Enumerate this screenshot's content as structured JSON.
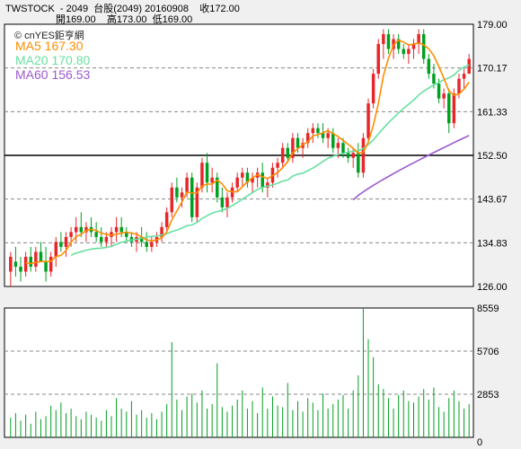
{
  "header": {
    "line1": "TWSTOCK  - 2049  台股(2049) 20160908    收172.00",
    "line2": "開169.00    高173.00  低169.00"
  },
  "watermark": "© cnYES鉅亨網",
  "legend": [
    {
      "key": "ma5",
      "text": "MA5 167.30",
      "color": "#ff8c00"
    },
    {
      "key": "ma20",
      "text": "MA20 170.80",
      "color": "#66e0a0"
    },
    {
      "key": "ma60",
      "text": "MA60 156.53",
      "color": "#9b59d0"
    }
  ],
  "colors": {
    "up": "#e8262a",
    "down": "#00a020",
    "volume_base": "#000000"
  },
  "chart_data": [
    {
      "type": "candlestick",
      "title": "TWSTOCK - 2049 台股(2049) 20160908",
      "ylim": [
        126.0,
        179.0
      ],
      "y_ticks": [
        "179.00",
        "170.17",
        "161.33",
        "152.50",
        "143.67",
        "134.83",
        "126.00"
      ],
      "reference_line": 152.5,
      "last_close": 172.0,
      "candles_ohlc": [
        [
          129,
          133,
          126,
          132
        ],
        [
          131,
          134,
          128,
          130
        ],
        [
          130,
          132,
          127,
          129
        ],
        [
          129,
          133,
          128,
          132
        ],
        [
          132,
          134,
          129,
          130
        ],
        [
          130,
          134,
          129,
          133
        ],
        [
          133,
          135,
          131,
          131
        ],
        [
          131,
          134,
          127,
          129
        ],
        [
          129,
          133,
          128,
          132
        ],
        [
          132,
          136,
          130,
          135
        ],
        [
          135,
          137,
          133,
          134
        ],
        [
          134,
          137,
          132,
          136
        ],
        [
          136,
          138,
          134,
          137
        ],
        [
          137,
          140,
          135,
          138
        ],
        [
          138,
          141,
          136,
          137
        ],
        [
          137,
          139,
          135,
          138
        ],
        [
          138,
          140,
          136,
          137
        ],
        [
          137,
          139,
          135,
          136
        ],
        [
          136,
          138,
          134,
          135
        ],
        [
          135,
          137,
          134,
          136
        ],
        [
          136,
          138,
          134,
          137
        ],
        [
          137,
          140,
          135,
          138
        ],
        [
          138,
          140,
          136,
          137
        ],
        [
          137,
          138,
          135,
          136
        ],
        [
          136,
          137,
          134,
          135
        ],
        [
          135,
          137,
          133,
          136
        ],
        [
          136,
          138,
          134,
          135
        ],
        [
          135,
          137,
          133,
          134
        ],
        [
          134,
          136,
          133,
          135
        ],
        [
          135,
          137,
          134,
          136
        ],
        [
          136,
          139,
          135,
          138
        ],
        [
          138,
          142,
          137,
          141
        ],
        [
          141,
          147,
          140,
          146
        ],
        [
          146,
          148,
          143,
          144
        ],
        [
          144,
          146,
          142,
          145
        ],
        [
          145,
          149,
          144,
          148
        ],
        [
          148,
          149,
          139,
          140
        ],
        [
          140,
          147,
          139,
          146
        ],
        [
          146,
          152,
          145,
          151
        ],
        [
          151,
          153,
          145,
          147
        ],
        [
          147,
          150,
          145,
          148
        ],
        [
          148,
          149,
          143,
          144
        ],
        [
          144,
          146,
          141,
          142
        ],
        [
          142,
          145,
          140,
          144
        ],
        [
          144,
          147,
          143,
          146
        ],
        [
          146,
          149,
          145,
          148
        ],
        [
          148,
          150,
          146,
          149
        ],
        [
          149,
          150,
          146,
          147
        ],
        [
          147,
          149,
          145,
          148
        ],
        [
          148,
          150,
          146,
          149
        ],
        [
          149,
          151,
          145,
          146
        ],
        [
          146,
          148,
          144,
          147
        ],
        [
          147,
          151,
          146,
          150
        ],
        [
          150,
          152,
          148,
          151
        ],
        [
          151,
          155,
          150,
          154
        ],
        [
          154,
          155,
          151,
          152
        ],
        [
          152,
          157,
          151,
          156
        ],
        [
          156,
          157,
          153,
          154
        ],
        [
          154,
          156,
          152,
          155
        ],
        [
          155,
          158,
          154,
          157
        ],
        [
          157,
          159,
          155,
          158
        ],
        [
          158,
          159,
          156,
          157
        ],
        [
          157,
          159,
          155,
          156
        ],
        [
          156,
          158,
          154,
          157
        ],
        [
          157,
          158,
          153,
          154
        ],
        [
          154,
          156,
          152,
          155
        ],
        [
          155,
          156,
          152,
          153
        ],
        [
          153,
          154,
          151,
          152
        ],
        [
          152,
          154,
          150,
          153
        ],
        [
          153,
          155,
          148,
          149
        ],
        [
          149,
          157,
          148,
          156
        ],
        [
          156,
          164,
          155,
          163
        ],
        [
          163,
          170,
          162,
          169
        ],
        [
          169,
          176,
          168,
          175
        ],
        [
          175,
          178,
          172,
          177
        ],
        [
          177,
          178,
          173,
          174
        ],
        [
          174,
          177,
          172,
          176
        ],
        [
          176,
          177,
          173,
          174
        ],
        [
          174,
          175,
          172,
          173
        ],
        [
          173,
          175,
          171,
          174
        ],
        [
          174,
          176,
          172,
          175
        ],
        [
          175,
          178,
          173,
          177
        ],
        [
          177,
          178,
          171,
          172
        ],
        [
          172,
          173,
          168,
          169
        ],
        [
          169,
          171,
          166,
          167
        ],
        [
          167,
          168,
          163,
          164
        ],
        [
          164,
          166,
          162,
          165
        ],
        [
          165,
          166,
          157,
          159
        ],
        [
          159,
          166,
          158,
          165
        ],
        [
          165,
          169,
          164,
          168
        ],
        [
          168,
          170,
          166,
          169
        ],
        [
          169,
          173,
          169,
          172
        ]
      ],
      "ma5_last": 167.3,
      "ma20_last": 170.8,
      "ma60_last": 156.53
    },
    {
      "type": "bar",
      "title": "Volume",
      "ylim": [
        0,
        8559
      ],
      "y_ticks": [
        "8559",
        "5706",
        "2853",
        "0"
      ],
      "values": [
        1300,
        1600,
        1100,
        1500,
        900,
        1700,
        1200,
        1400,
        2100,
        1800,
        2300,
        1600,
        1900,
        1400,
        1200,
        1700,
        1500,
        1300,
        1100,
        1800,
        1400,
        2600,
        1900,
        1700,
        2400,
        1500,
        1800,
        1300,
        1600,
        1200,
        1700,
        2200,
        6300,
        2500,
        1800,
        2700,
        2900,
        2300,
        3100,
        1900,
        2200,
        4900,
        2000,
        1700,
        2100,
        2500,
        3100,
        1900,
        2400,
        1600,
        3300,
        1900,
        2700,
        2100,
        2000,
        3600,
        1800,
        2400,
        1700,
        2600,
        2300,
        1800,
        2900,
        1900,
        2200,
        2500,
        2800,
        1900,
        3100,
        4100,
        8559,
        6500,
        5300,
        3500,
        3200,
        2600,
        1900,
        2800,
        3100,
        2400,
        2300,
        2700,
        3200,
        2500,
        3300,
        2000,
        1700,
        2600,
        3100,
        2400,
        1900,
        2200
      ]
    }
  ]
}
